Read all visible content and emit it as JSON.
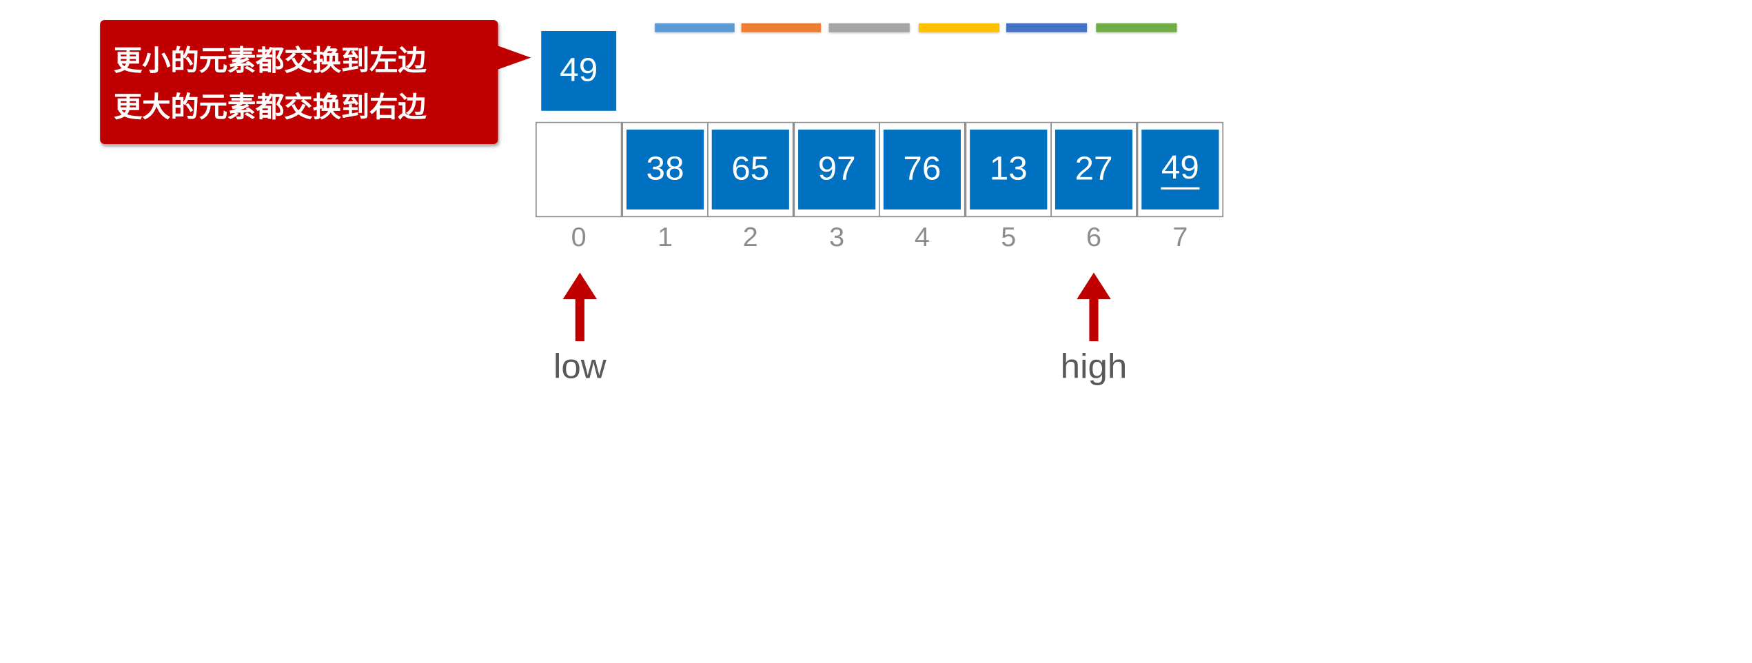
{
  "legend_bars": [
    {
      "color": "#5b9bd5"
    },
    {
      "color": "#ed7d31"
    },
    {
      "color": "#a5a5a5"
    },
    {
      "color": "#ffc000"
    },
    {
      "color": "#4472c4"
    },
    {
      "color": "#70ad47"
    }
  ],
  "callout": {
    "line1": "更小的元素都交换到左边",
    "line2": "更大的元素都交换到右边",
    "color": "#c00000"
  },
  "pivot": {
    "value": "49",
    "color": "#0070c0"
  },
  "array": {
    "cells": [
      {
        "index": "0",
        "value": "",
        "filled": false,
        "underlined": false
      },
      {
        "index": "1",
        "value": "38",
        "filled": true,
        "underlined": false
      },
      {
        "index": "2",
        "value": "65",
        "filled": true,
        "underlined": false
      },
      {
        "index": "3",
        "value": "97",
        "filled": true,
        "underlined": false
      },
      {
        "index": "4",
        "value": "76",
        "filled": true,
        "underlined": false
      },
      {
        "index": "5",
        "value": "13",
        "filled": true,
        "underlined": false
      },
      {
        "index": "6",
        "value": "27",
        "filled": true,
        "underlined": false
      },
      {
        "index": "7",
        "value": "49",
        "filled": true,
        "underlined": true
      }
    ],
    "fill_color": "#0070c0"
  },
  "pointers": {
    "low": {
      "label": "low",
      "index": 0
    },
    "high": {
      "label": "high",
      "index": 6
    },
    "color": "#c00000"
  }
}
